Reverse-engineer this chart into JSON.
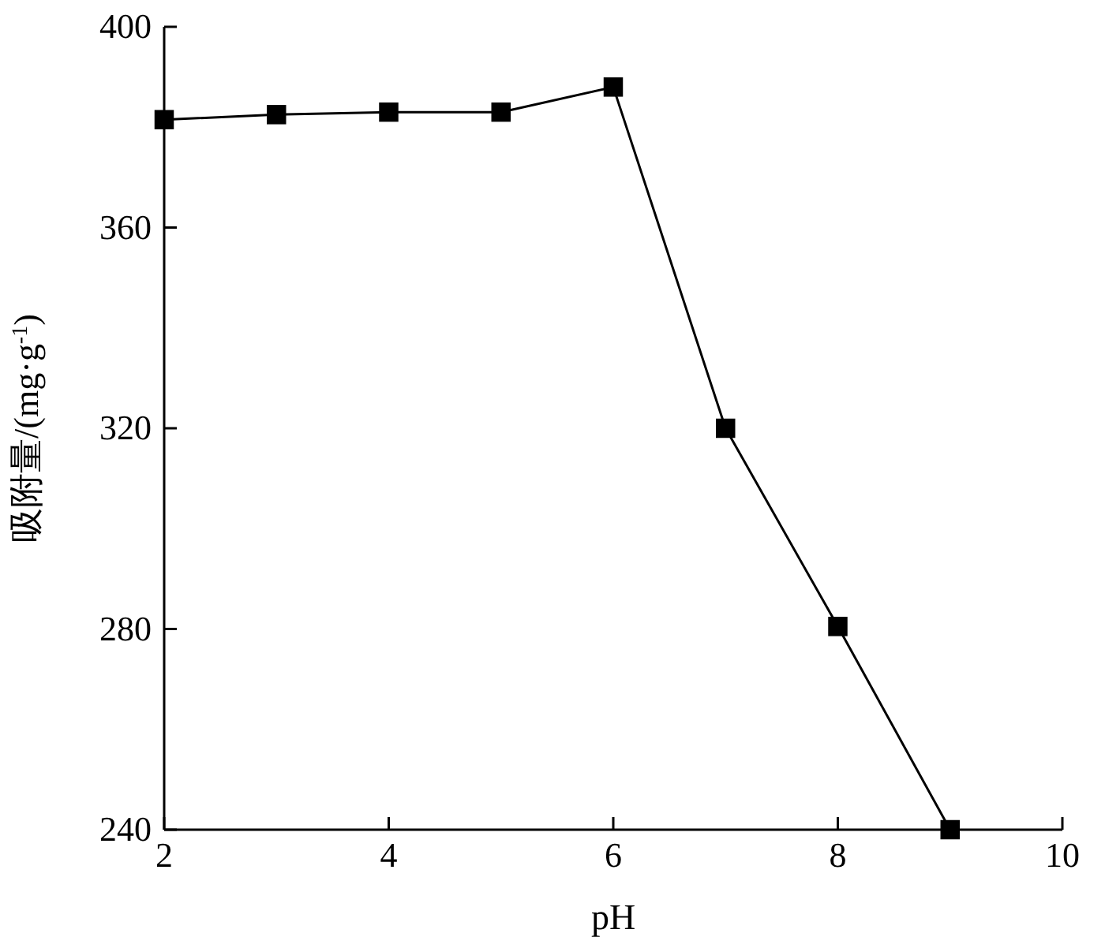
{
  "chart_data": {
    "type": "line",
    "xlabel": "pH",
    "ylabel": "吸附量/(mg·g$^{-1}$)",
    "x": [
      2,
      3,
      4,
      5,
      6,
      7,
      8,
      9
    ],
    "series": [
      {
        "color": "#000000",
        "values": [
          381.5,
          382.5,
          383,
          383,
          388,
          320,
          280.5,
          240
        ]
      }
    ],
    "xlim": [
      2,
      10
    ],
    "xticks": [
      2,
      4,
      6,
      8,
      10
    ],
    "ylim": [
      240,
      400
    ],
    "yticks": [
      240,
      280,
      320,
      360,
      400
    ],
    "marker": "square",
    "line_style": "solid"
  }
}
